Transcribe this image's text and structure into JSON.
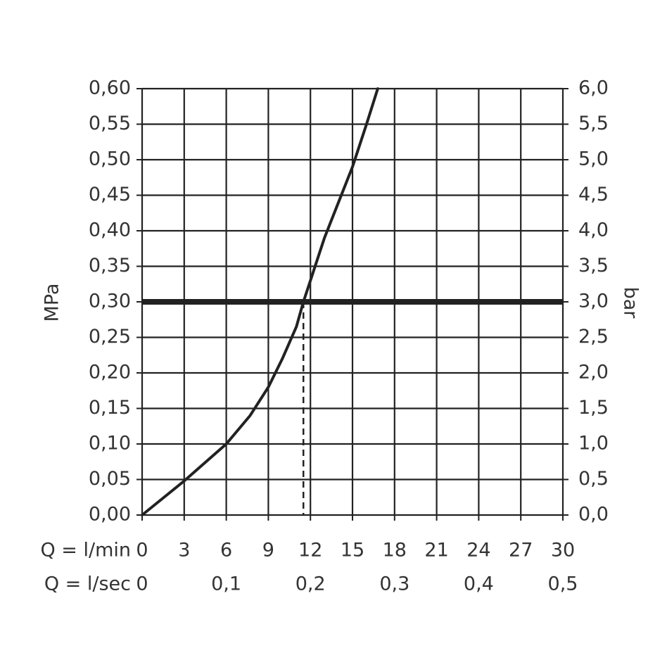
{
  "chart_data": {
    "type": "line",
    "ylabel": "MPa",
    "y2label": "bar",
    "xlabel": "Q = l/min",
    "x2label": "Q = l/sec",
    "x": [
      0,
      3,
      6,
      7.7,
      9,
      10,
      11,
      11.5,
      12,
      13,
      14,
      15,
      16,
      16.8
    ],
    "values": [
      0,
      0.048,
      0.1,
      0.14,
      0.18,
      0.22,
      0.265,
      0.3,
      0.33,
      0.39,
      0.44,
      0.49,
      0.55,
      0.6
    ],
    "color": "#222222",
    "xlim": [
      0,
      30
    ],
    "xticks": [
      0,
      3,
      6,
      9,
      12,
      15,
      18,
      21,
      24,
      27,
      30
    ],
    "x2lim": [
      0,
      0.5
    ],
    "x2ticks": [
      0,
      {
        "value": 0.1,
        "label": "0,1"
      },
      {
        "value": 0.2,
        "label": "0,2"
      },
      {
        "value": 0.3,
        "label": "0,3"
      },
      {
        "value": 0.4,
        "label": "0,4"
      },
      {
        "value": 0.5,
        "label": "0,5"
      }
    ],
    "ylim": [
      0,
      0.6
    ],
    "yticks": [
      {
        "value": 0,
        "label": "0,00"
      },
      {
        "value": 0.05,
        "label": "0,05"
      },
      {
        "value": 0.1,
        "label": "0,10"
      },
      {
        "value": 0.15,
        "label": "0,15"
      },
      {
        "value": 0.2,
        "label": "0,20"
      },
      {
        "value": 0.25,
        "label": "0,25"
      },
      {
        "value": 0.3,
        "label": "0,30"
      },
      {
        "value": 0.35,
        "label": "0,35"
      },
      {
        "value": 0.4,
        "label": "0,40"
      },
      {
        "value": 0.45,
        "label": "0,45"
      },
      {
        "value": 0.5,
        "label": "0,50"
      },
      {
        "value": 0.55,
        "label": "0,55"
      },
      {
        "value": 0.6,
        "label": "0,60"
      }
    ],
    "y2lim": [
      0,
      6
    ],
    "y2ticks": [
      {
        "value": 0,
        "label": "0,0"
      },
      {
        "value": 0.5,
        "label": "0,5"
      },
      {
        "value": 1,
        "label": "1,0"
      },
      {
        "value": 1.5,
        "label": "1,5"
      },
      {
        "value": 2,
        "label": "2,0"
      },
      {
        "value": 2.5,
        "label": "2,5"
      },
      {
        "value": 3,
        "label": "3,0"
      },
      {
        "value": 3.5,
        "label": "3,5"
      },
      {
        "value": 4,
        "label": "4,0"
      },
      {
        "value": 4.5,
        "label": "4,5"
      },
      {
        "value": 5,
        "label": "5,0"
      },
      {
        "value": 5.5,
        "label": "5,5"
      },
      {
        "value": 6,
        "label": "6,0"
      }
    ],
    "hline": 0.3,
    "vline": 11.5,
    "grid": true
  }
}
